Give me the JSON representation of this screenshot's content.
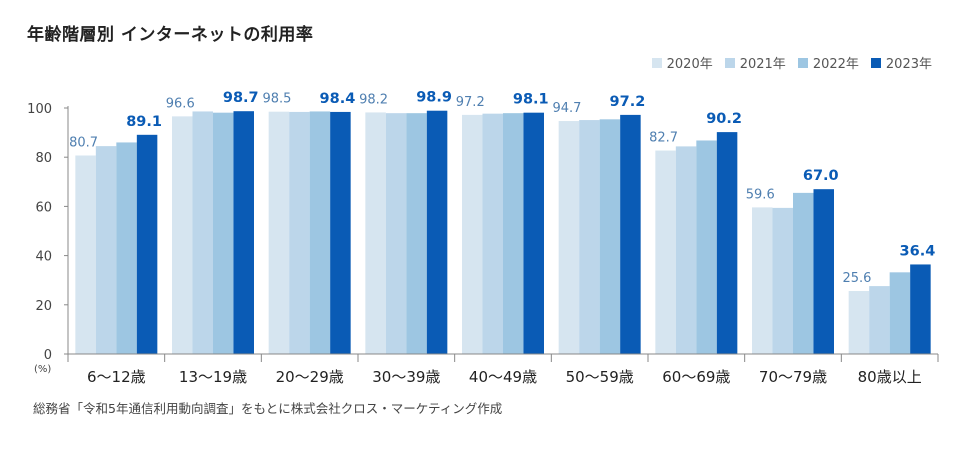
{
  "title": "年齢階層別 インターネットの利用率",
  "source": "総務省「令和5年通信利用動向調査」をもとに株式会社クロス・マーケティング作成",
  "colors": {
    "s2020": "#d6e5f0",
    "s2021": "#bcd6ea",
    "s2022": "#9dc6e2",
    "s2023": "#0a5bb5"
  },
  "chart_data": {
    "type": "bar",
    "title": "年齢階層別 インターネットの利用率",
    "ylabel": "(%)",
    "ylim": [
      0,
      100
    ],
    "yticks": [
      0,
      20,
      40,
      60,
      80,
      100
    ],
    "grid": false,
    "legend_position": "top-right",
    "categories": [
      "6～12歳",
      "13～19歳",
      "20～29歳",
      "30～39歳",
      "40～49歳",
      "50～59歳",
      "60～69歳",
      "70～79歳",
      "80歳以上"
    ],
    "series": [
      {
        "name": "2020年",
        "values": [
          80.7,
          96.6,
          98.5,
          98.2,
          97.2,
          94.7,
          82.7,
          59.6,
          25.6
        ]
      },
      {
        "name": "2021年",
        "values": [
          84.5,
          98.6,
          98.4,
          97.9,
          97.7,
          95.1,
          84.4,
          59.4,
          27.6
        ]
      },
      {
        "name": "2022年",
        "values": [
          86.0,
          98.1,
          98.6,
          97.9,
          97.9,
          95.4,
          86.8,
          65.5,
          33.2
        ]
      },
      {
        "name": "2023年",
        "values": [
          89.1,
          98.7,
          98.4,
          98.9,
          98.1,
          97.2,
          90.2,
          67.0,
          36.4
        ]
      }
    ],
    "labeled_series": [
      "2020年",
      "2023年"
    ]
  }
}
